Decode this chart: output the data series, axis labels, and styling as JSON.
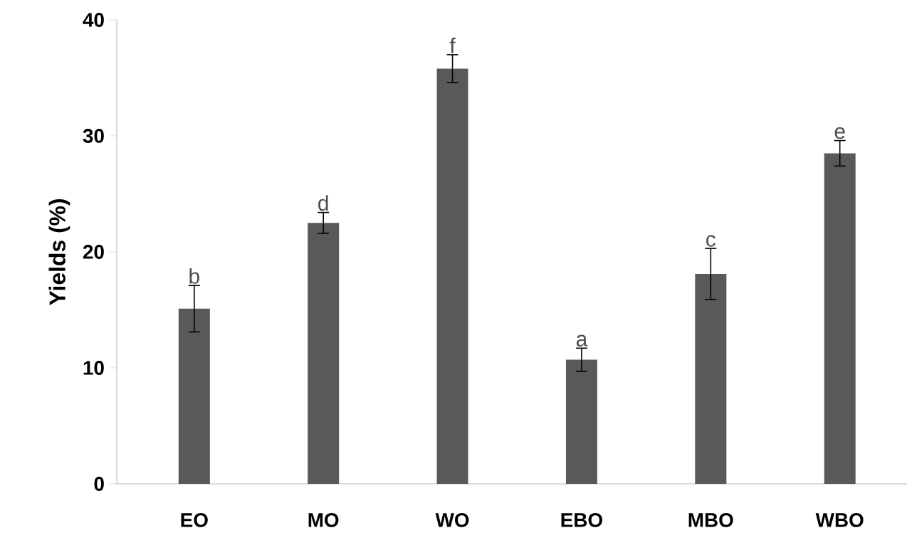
{
  "chart_data": {
    "type": "bar",
    "ylabel": "Yields (%)",
    "categories": [
      "EO",
      "MO",
      "WO",
      "EBO",
      "MBO",
      "WBO"
    ],
    "values": [
      15.1,
      22.5,
      35.8,
      10.7,
      18.1,
      28.5
    ],
    "errors": [
      2.0,
      0.9,
      1.2,
      1.0,
      2.2,
      1.1
    ],
    "color": "#595959",
    "ylim": [
      0,
      40
    ],
    "yticks": [
      0,
      10,
      20,
      30,
      40
    ],
    "grid": false,
    "annotations": [
      {
        "text": "b",
        "x": "EO",
        "y": 17.1
      },
      {
        "text": "d",
        "x": "MO",
        "y": 23.4
      },
      {
        "text": "f",
        "x": "WO",
        "y": 37.0
      },
      {
        "text": "a",
        "x": "EBO",
        "y": 11.7
      },
      {
        "text": "c",
        "x": "MBO",
        "y": 20.3
      },
      {
        "text": "e",
        "x": "WBO",
        "y": 29.6
      }
    ]
  }
}
